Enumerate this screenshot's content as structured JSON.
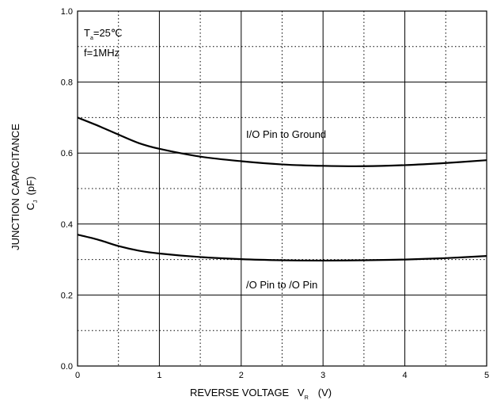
{
  "chart_data": {
    "type": "line",
    "title": "",
    "xlabel": {
      "main": "REVERSE VOLTAGE   V",
      "sub": "R",
      "unit": "(V)"
    },
    "ylabel": {
      "line1": "JUNCTION CAPACITANCE",
      "line2_main": "C",
      "line2_sub": "J",
      "line2_unit": "(pF)"
    },
    "xlim": [
      0,
      5
    ],
    "ylim": [
      0.0,
      1.0
    ],
    "x_ticks": [
      0,
      1,
      2,
      3,
      4,
      5
    ],
    "x_tick_labels": [
      "0",
      "1",
      "2",
      "3",
      "4",
      "5"
    ],
    "y_ticks": [
      0.0,
      0.2,
      0.4,
      0.6,
      0.8,
      1.0
    ],
    "y_tick_labels": [
      "0.0",
      "0.2",
      "0.4",
      "0.6",
      "0.8",
      "1.0"
    ],
    "grid": {
      "major": "solid",
      "minor": "dotted"
    },
    "conditions": {
      "ta_main": "T",
      "ta_sub": "a",
      "ta_value": "=25℃",
      "freq": "f=1MHz"
    },
    "series": [
      {
        "name": "I/O Pin to Ground",
        "x": [
          0,
          0.25,
          0.5,
          0.75,
          1.0,
          1.5,
          2.0,
          2.5,
          3.0,
          3.5,
          4.0,
          4.5,
          5.0
        ],
        "y": [
          0.7,
          0.677,
          0.652,
          0.628,
          0.612,
          0.59,
          0.577,
          0.568,
          0.564,
          0.563,
          0.566,
          0.572,
          0.58
        ]
      },
      {
        "name": "/O Pin to  /O Pin",
        "x": [
          0,
          0.25,
          0.5,
          0.75,
          1.0,
          1.5,
          2.0,
          2.5,
          3.0,
          3.5,
          4.0,
          4.5,
          5.0
        ],
        "y": [
          0.37,
          0.356,
          0.338,
          0.325,
          0.317,
          0.307,
          0.301,
          0.298,
          0.297,
          0.298,
          0.3,
          0.304,
          0.31
        ]
      }
    ]
  }
}
